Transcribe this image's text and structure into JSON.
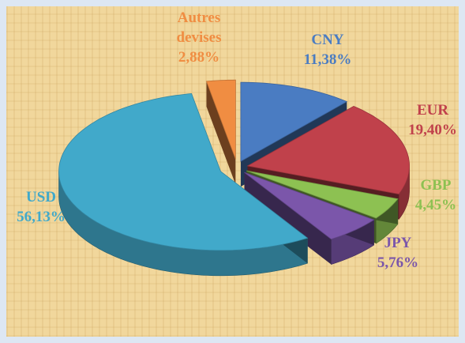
{
  "chart_data": {
    "type": "pie",
    "categories": [
      "CNY",
      "EUR",
      "GBP",
      "JPY",
      "USD",
      "Autres devises"
    ],
    "values": [
      11.38,
      19.4,
      4.45,
      5.76,
      56.13,
      2.88
    ],
    "value_labels": [
      "11,38%",
      "19,40%",
      "4,45%",
      "5,76%",
      "56,13%",
      "2,88%"
    ],
    "colors": [
      "#4a7cc2",
      "#c0414b",
      "#8dc152",
      "#7b56aa",
      "#41a9ca",
      "#f08d42"
    ]
  }
}
